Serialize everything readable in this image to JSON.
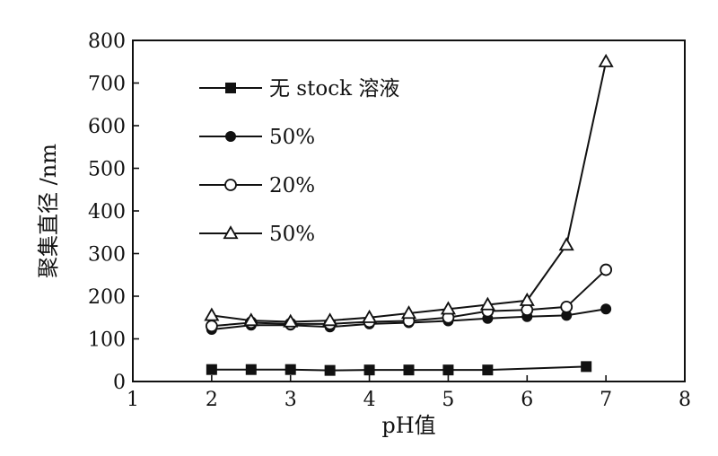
{
  "chart_data": {
    "type": "line",
    "xlabel": "pH值",
    "ylabel": "聚集直径 /nm",
    "xlim": [
      1,
      8
    ],
    "ylim": [
      0,
      800
    ],
    "xticks": [
      1,
      2,
      3,
      4,
      5,
      6,
      7,
      8
    ],
    "yticks": [
      0,
      100,
      200,
      300,
      400,
      500,
      600,
      700,
      800
    ],
    "grid": false,
    "legend_position": "top-left",
    "series": [
      {
        "name": "无 stock 溶液",
        "marker": "filled-square",
        "x": [
          2,
          2.5,
          3,
          3.5,
          4,
          4.5,
          5,
          5.5,
          6.75
        ],
        "y": [
          28,
          28,
          28,
          26,
          27,
          27,
          27,
          27,
          35
        ]
      },
      {
        "name": "50%",
        "marker": "filled-circle",
        "x": [
          2,
          2.5,
          3,
          3.5,
          4,
          4.5,
          5,
          5.5,
          6,
          6.5,
          7
        ],
        "y": [
          122,
          132,
          132,
          128,
          135,
          138,
          142,
          148,
          152,
          155,
          170
        ]
      },
      {
        "name": "20%",
        "marker": "open-circle",
        "x": [
          2,
          2.5,
          3,
          3.5,
          4,
          4.5,
          5,
          5.5,
          6,
          6.5,
          7
        ],
        "y": [
          130,
          138,
          135,
          135,
          140,
          142,
          150,
          165,
          168,
          175,
          262
        ]
      },
      {
        "name": "50%",
        "marker": "open-triangle",
        "x": [
          2,
          2.5,
          3,
          3.5,
          4,
          4.5,
          5,
          5.5,
          6,
          6.5,
          7
        ],
        "y": [
          155,
          143,
          140,
          143,
          150,
          160,
          170,
          180,
          190,
          320,
          750
        ]
      }
    ]
  }
}
